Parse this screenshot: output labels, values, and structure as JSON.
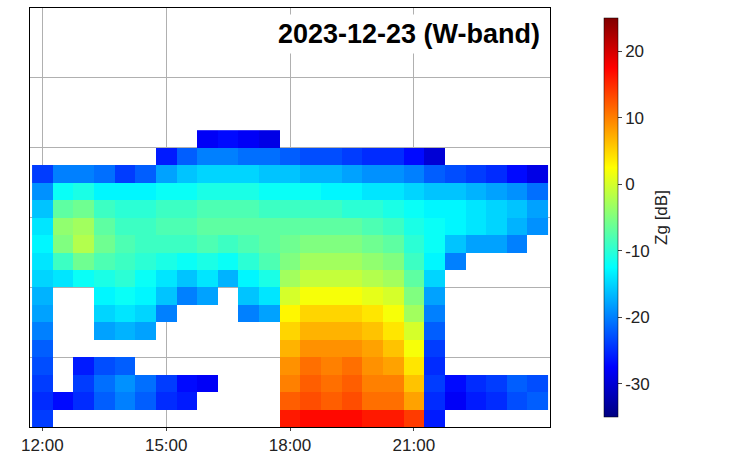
{
  "chart_data": {
    "type": "heatmap",
    "title": "2023-12-23 (W-band)",
    "x": [
      12.0,
      12.5,
      13.0,
      13.5,
      14.0,
      14.5,
      15.0,
      15.5,
      16.0,
      16.5,
      17.0,
      17.5,
      18.0,
      18.5,
      19.0,
      19.5,
      20.0,
      20.5,
      21.0,
      21.5,
      22.0,
      22.5,
      23.0,
      23.5,
      24.0
    ],
    "y": [
      0.25,
      0.75,
      1.25,
      1.75,
      2.25,
      2.75,
      3.25,
      3.75,
      4.25,
      4.75,
      5.25,
      5.75,
      6.25,
      6.75,
      7.25,
      7.75,
      8.25
    ],
    "z": [
      [
        -24,
        null,
        null,
        null,
        null,
        null,
        null,
        null,
        null,
        null,
        null,
        null,
        16,
        17,
        17,
        17,
        16,
        16,
        14,
        -26,
        null,
        null,
        null,
        null,
        null
      ],
      [
        -25,
        -27,
        -25,
        -22,
        -20,
        -22,
        -25,
        -26,
        null,
        null,
        null,
        null,
        12,
        13,
        12,
        13,
        11,
        11,
        8,
        -25,
        -28,
        -26,
        -25,
        -23,
        -22
      ],
      [
        -24,
        null,
        -24,
        -21,
        -19,
        -21,
        -24,
        -27,
        -28,
        null,
        null,
        null,
        10,
        12,
        11,
        12,
        10,
        10,
        6,
        -24,
        -27,
        -25,
        -24,
        -22,
        -23
      ],
      [
        -23,
        null,
        -26,
        -23,
        -22,
        null,
        null,
        null,
        null,
        null,
        null,
        null,
        9,
        11,
        10,
        11,
        9,
        8,
        4,
        -25,
        null,
        null,
        null,
        null,
        null
      ],
      [
        -22,
        null,
        null,
        null,
        null,
        null,
        null,
        null,
        null,
        null,
        null,
        null,
        7,
        9,
        9,
        9,
        8,
        6,
        2,
        -24,
        null,
        null,
        null,
        null,
        null
      ],
      [
        -20,
        null,
        null,
        -18,
        -17,
        -18,
        null,
        null,
        null,
        null,
        null,
        null,
        5,
        7,
        7,
        7,
        6,
        4,
        0,
        -22,
        null,
        null,
        null,
        null,
        null
      ],
      [
        -18,
        null,
        null,
        -15,
        -14,
        -15,
        -20,
        null,
        null,
        null,
        -20,
        -18,
        3,
        5,
        5,
        5,
        4,
        2,
        -3,
        -20,
        null,
        null,
        null,
        null,
        null
      ],
      [
        -17,
        null,
        null,
        -13,
        -12,
        -13,
        -16,
        -20,
        -18,
        null,
        -16,
        -14,
        0,
        2,
        2,
        2,
        1,
        0,
        -5,
        -18,
        null,
        null,
        null,
        null,
        null
      ],
      [
        -15,
        -14,
        -12,
        -11,
        -10,
        -12,
        -14,
        -16,
        -14,
        -17,
        -13,
        -11,
        -3,
        -1,
        -1,
        -1,
        -2,
        -3,
        -7,
        -15,
        null,
        null,
        null,
        null,
        null
      ],
      [
        -14,
        -9,
        -6,
        -8,
        -9,
        -10,
        -11,
        -12,
        -11,
        -12,
        -10,
        -8,
        -5,
        -3,
        -3,
        -3,
        -4,
        -5,
        -9,
        -13,
        -20,
        null,
        null,
        null,
        null
      ],
      [
        -13,
        -5,
        -2,
        -6,
        -8,
        -9,
        -9,
        -9,
        -8,
        -9,
        -8,
        -7,
        -6,
        -5,
        -5,
        -5,
        -6,
        -7,
        -10,
        -12,
        -16,
        -18,
        -18,
        -20,
        null
      ],
      [
        -14,
        -4,
        -3,
        -7,
        -9,
        -9,
        -8,
        -8,
        -7,
        -7,
        -7,
        -7,
        -7,
        -7,
        -7,
        -7,
        -8,
        -9,
        -11,
        -12,
        -13,
        -14,
        -15,
        -17,
        -19
      ],
      [
        -16,
        -7,
        -6,
        -9,
        -10,
        -10,
        -9,
        -9,
        -8,
        -8,
        -8,
        -9,
        -9,
        -9,
        -9,
        -10,
        -10,
        -11,
        -12,
        -13,
        -13,
        -14,
        -15,
        -16,
        -18
      ],
      [
        -19,
        -12,
        -11,
        -13,
        -13,
        -13,
        -12,
        -12,
        -11,
        -11,
        -11,
        -12,
        -12,
        -12,
        -13,
        -13,
        -14,
        -14,
        -15,
        -16,
        -16,
        -17,
        -18,
        -19,
        -21
      ],
      [
        -24,
        -20,
        -20,
        -21,
        -24,
        -22,
        -18,
        -16,
        -15,
        -15,
        -15,
        -16,
        -16,
        -17,
        -17,
        -18,
        -19,
        -19,
        -20,
        -22,
        -23,
        -24,
        -25,
        -27,
        -29
      ],
      [
        null,
        null,
        null,
        null,
        null,
        null,
        -26,
        -22,
        -20,
        -20,
        -21,
        -21,
        -22,
        -23,
        -23,
        -24,
        -25,
        -25,
        -27,
        -30,
        null,
        null,
        null,
        null,
        null
      ],
      [
        null,
        null,
        null,
        null,
        null,
        null,
        null,
        null,
        -28,
        -27,
        -28,
        -29,
        null,
        null,
        null,
        null,
        null,
        null,
        null,
        null,
        null,
        null,
        null,
        null,
        null
      ]
    ],
    "xlim": [
      11.7,
      24.3
    ],
    "xticks": [
      {
        "value": 12,
        "label": "12:00"
      },
      {
        "value": 15,
        "label": "15:00"
      },
      {
        "value": 18,
        "label": "18:00"
      },
      {
        "value": 21,
        "label": "21:00"
      }
    ],
    "ylim": [
      0,
      12
    ],
    "yticks": [
      0,
      2,
      4,
      6,
      8,
      10,
      12
    ],
    "zlim": [
      -35,
      25
    ],
    "zticks": [
      -30,
      -20,
      -10,
      0,
      10,
      20
    ],
    "colorbar_label": "Zg [dB]",
    "grid": true,
    "tick_labels": "x"
  }
}
